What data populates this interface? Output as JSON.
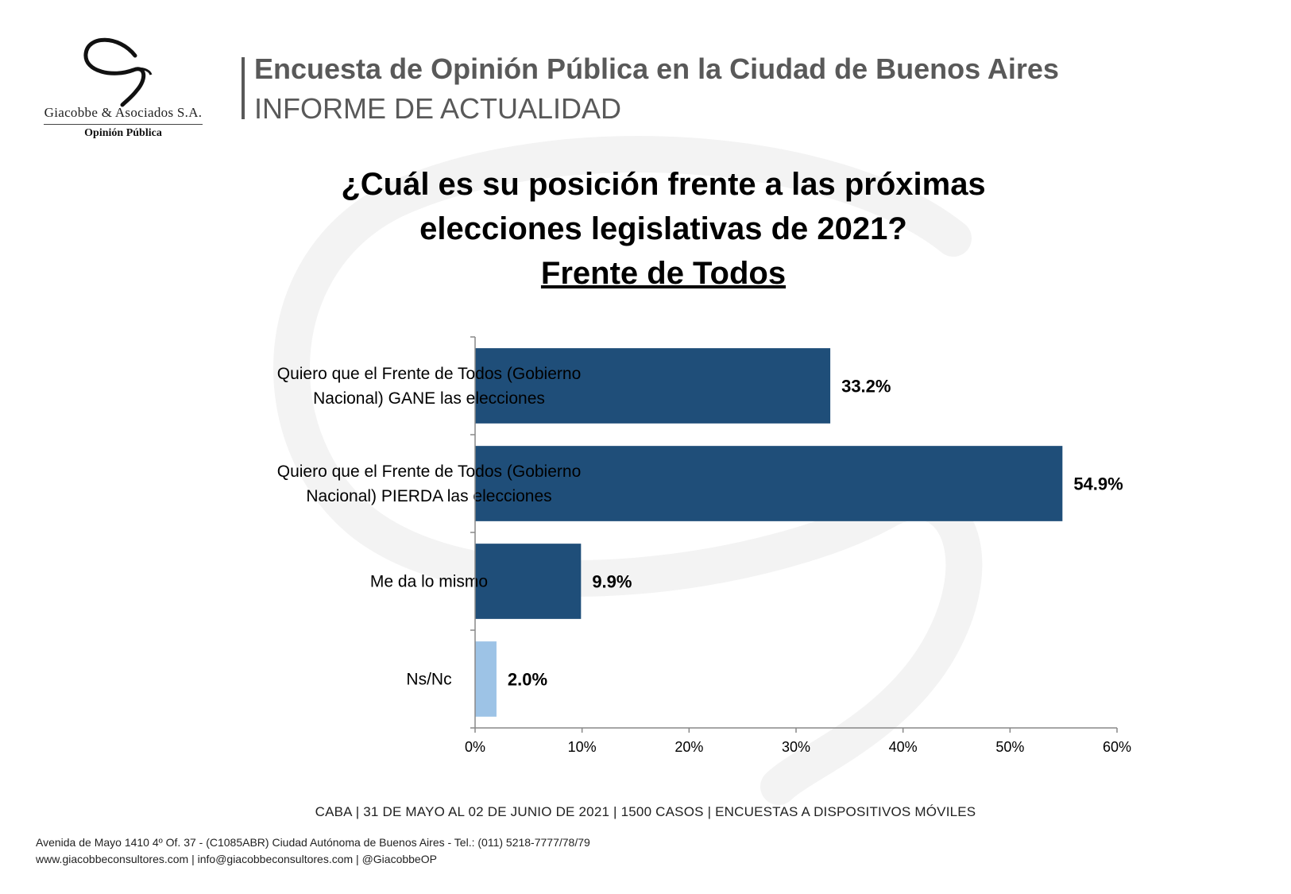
{
  "logo": {
    "company": "Giacobbe & Asociados S.A.",
    "tagline": "Opinión Pública"
  },
  "header": {
    "title": "Encuesta de Opinión Pública en la Ciudad de Buenos Aires",
    "subtitle": "INFORME DE ACTUALIDAD"
  },
  "question": {
    "line1": "¿Cuál es su posición frente a las próximas",
    "line2": "elecciones legislativas de 2021?",
    "subject": "Frente de Todos"
  },
  "chart_data": {
    "type": "bar",
    "orientation": "horizontal",
    "categories": [
      [
        "Quiero que el Frente de Todos (Gobierno",
        "Nacional) GANE las elecciones"
      ],
      [
        "Quiero que el Frente de Todos (Gobierno",
        "Nacional) PIERDA las elecciones"
      ],
      [
        "Me da lo mismo"
      ],
      [
        "Ns/Nc"
      ]
    ],
    "values": [
      33.2,
      54.9,
      9.9,
      2.0
    ],
    "value_labels": [
      "33.2%",
      "54.9%",
      "9.9%",
      "2.0%"
    ],
    "bar_colors": [
      "#1f4e79",
      "#1f4e79",
      "#1f4e79",
      "#9dc3e6"
    ],
    "xlim": [
      0,
      60
    ],
    "xticks": [
      0,
      10,
      20,
      30,
      40,
      50,
      60
    ],
    "xtick_labels": [
      "0%",
      "10%",
      "20%",
      "30%",
      "40%",
      "50%",
      "60%"
    ],
    "grid": false,
    "legend": "none"
  },
  "footer": {
    "note": "CABA | 31 DE MAYO AL 02 DE JUNIO DE 2021 | 1500 CASOS | ENCUESTAS A DISPOSITIVOS MÓVILES",
    "address": "Avenida de Mayo 1410 4º Of. 37 - (C1085ABR) Ciudad Autónoma de Buenos Aires - Tel.: (011) 5218-7777/78/79",
    "contact": "www.giacobbeconsultores.com | info@giacobbeconsultores.com | @GiacobbeOP"
  }
}
